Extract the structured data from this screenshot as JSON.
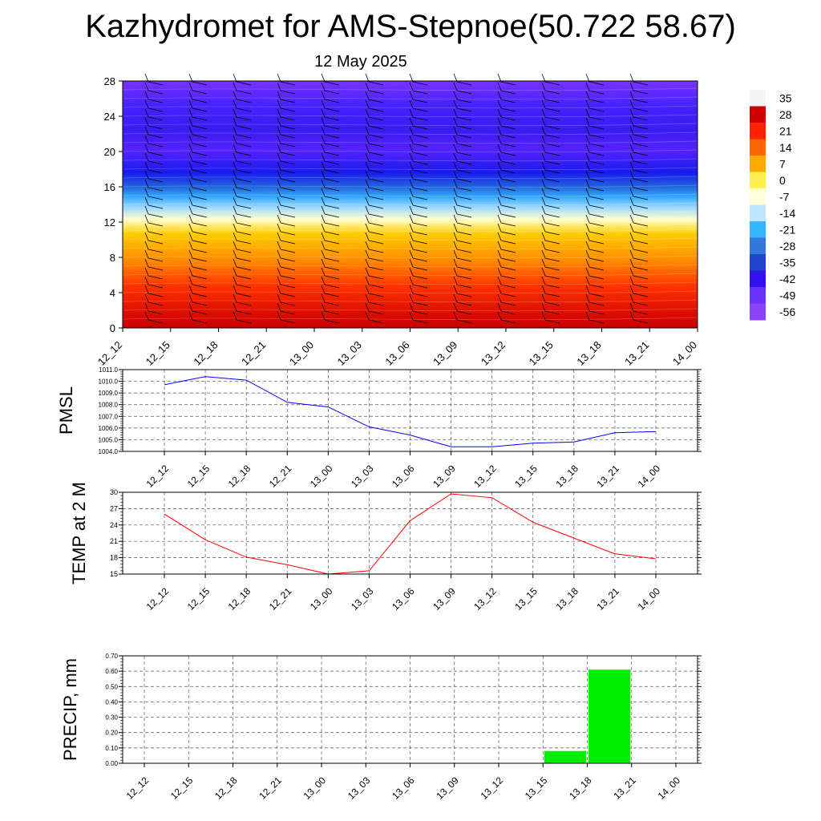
{
  "title": "Kazhydromet for AMS-Stepnoe(50.722 58.67)",
  "subtitle": "12 May 2025",
  "chart_data": [
    {
      "type": "heatmap",
      "x_ticks": [
        "12_12",
        "12_15",
        "12_18",
        "12_21",
        "13_00",
        "13_03",
        "13_06",
        "13_09",
        "13_12",
        "13_15",
        "13_18",
        "13_21",
        "14_00"
      ],
      "y_ticks": [
        "0",
        "4",
        "8",
        "12",
        "16",
        "20",
        "24",
        "28"
      ],
      "ylim": [
        0,
        28
      ],
      "colorbar_labels": [
        "35",
        "28",
        "21",
        "14",
        "7",
        "0",
        "-7",
        "-14",
        "-21",
        "-28",
        "-35",
        "-42",
        "-49",
        "-56"
      ],
      "color_stops": [
        "#f5f5f5",
        "#cc0000",
        "#ff2200",
        "#ff6600",
        "#ffaa00",
        "#ffee55",
        "#ffffdd",
        "#bfe6ff",
        "#33b5ff",
        "#3377dd",
        "#2244cc",
        "#3311ee",
        "#6633ff",
        "#8844ff"
      ],
      "wind_barbs": true
    },
    {
      "type": "line",
      "ylabel": "PMSL",
      "x": [
        "12_12",
        "12_15",
        "12_18",
        "12_21",
        "13_00",
        "13_03",
        "13_06",
        "13_09",
        "13_12",
        "13_15",
        "13_18",
        "13_21",
        "14_00"
      ],
      "values": [
        1009.7,
        1010.4,
        1010.1,
        1008.2,
        1007.8,
        1006.1,
        1005.4,
        1004.4,
        1004.4,
        1004.7,
        1004.8,
        1005.6,
        1005.7
      ],
      "ylim": [
        1004.0,
        1011.0
      ],
      "y_ticks": [
        "1004.0",
        "1005.0",
        "1006.0",
        "1007.0",
        "1008.0",
        "1009.0",
        "1010.0",
        "1011.0"
      ],
      "color": "#0000ff",
      "grid": true
    },
    {
      "type": "line",
      "ylabel": "TEMP at 2 M",
      "x": [
        "12_12",
        "12_15",
        "12_18",
        "12_21",
        "13_00",
        "13_03",
        "13_06",
        "13_09",
        "13_12",
        "13_15",
        "13_18",
        "13_21",
        "14_00"
      ],
      "values": [
        26.0,
        21.3,
        18.1,
        16.7,
        15.0,
        15.6,
        24.8,
        29.7,
        29.0,
        24.5,
        21.6,
        18.7,
        17.8
      ],
      "ylim": [
        15,
        30
      ],
      "y_ticks": [
        "15",
        "18",
        "21",
        "24",
        "27",
        "30"
      ],
      "color": "#ff0000",
      "grid": true
    },
    {
      "type": "bar",
      "ylabel": "PRECIP, mm",
      "categories": [
        "12_12",
        "12_15",
        "12_18",
        "12_21",
        "13_00",
        "13_03",
        "13_06",
        "13_09",
        "13_12",
        "13_15",
        "13_18",
        "13_21",
        "14_00"
      ],
      "values": [
        0,
        0,
        0,
        0,
        0,
        0,
        0,
        0,
        0,
        0,
        0.08,
        0.61,
        0
      ],
      "ylim": [
        0,
        0.7
      ],
      "y_ticks": [
        "0.00",
        "0.10",
        "0.20",
        "0.30",
        "0.40",
        "0.50",
        "0.60",
        "0.70"
      ],
      "color": "#00ee00",
      "grid": true
    }
  ]
}
